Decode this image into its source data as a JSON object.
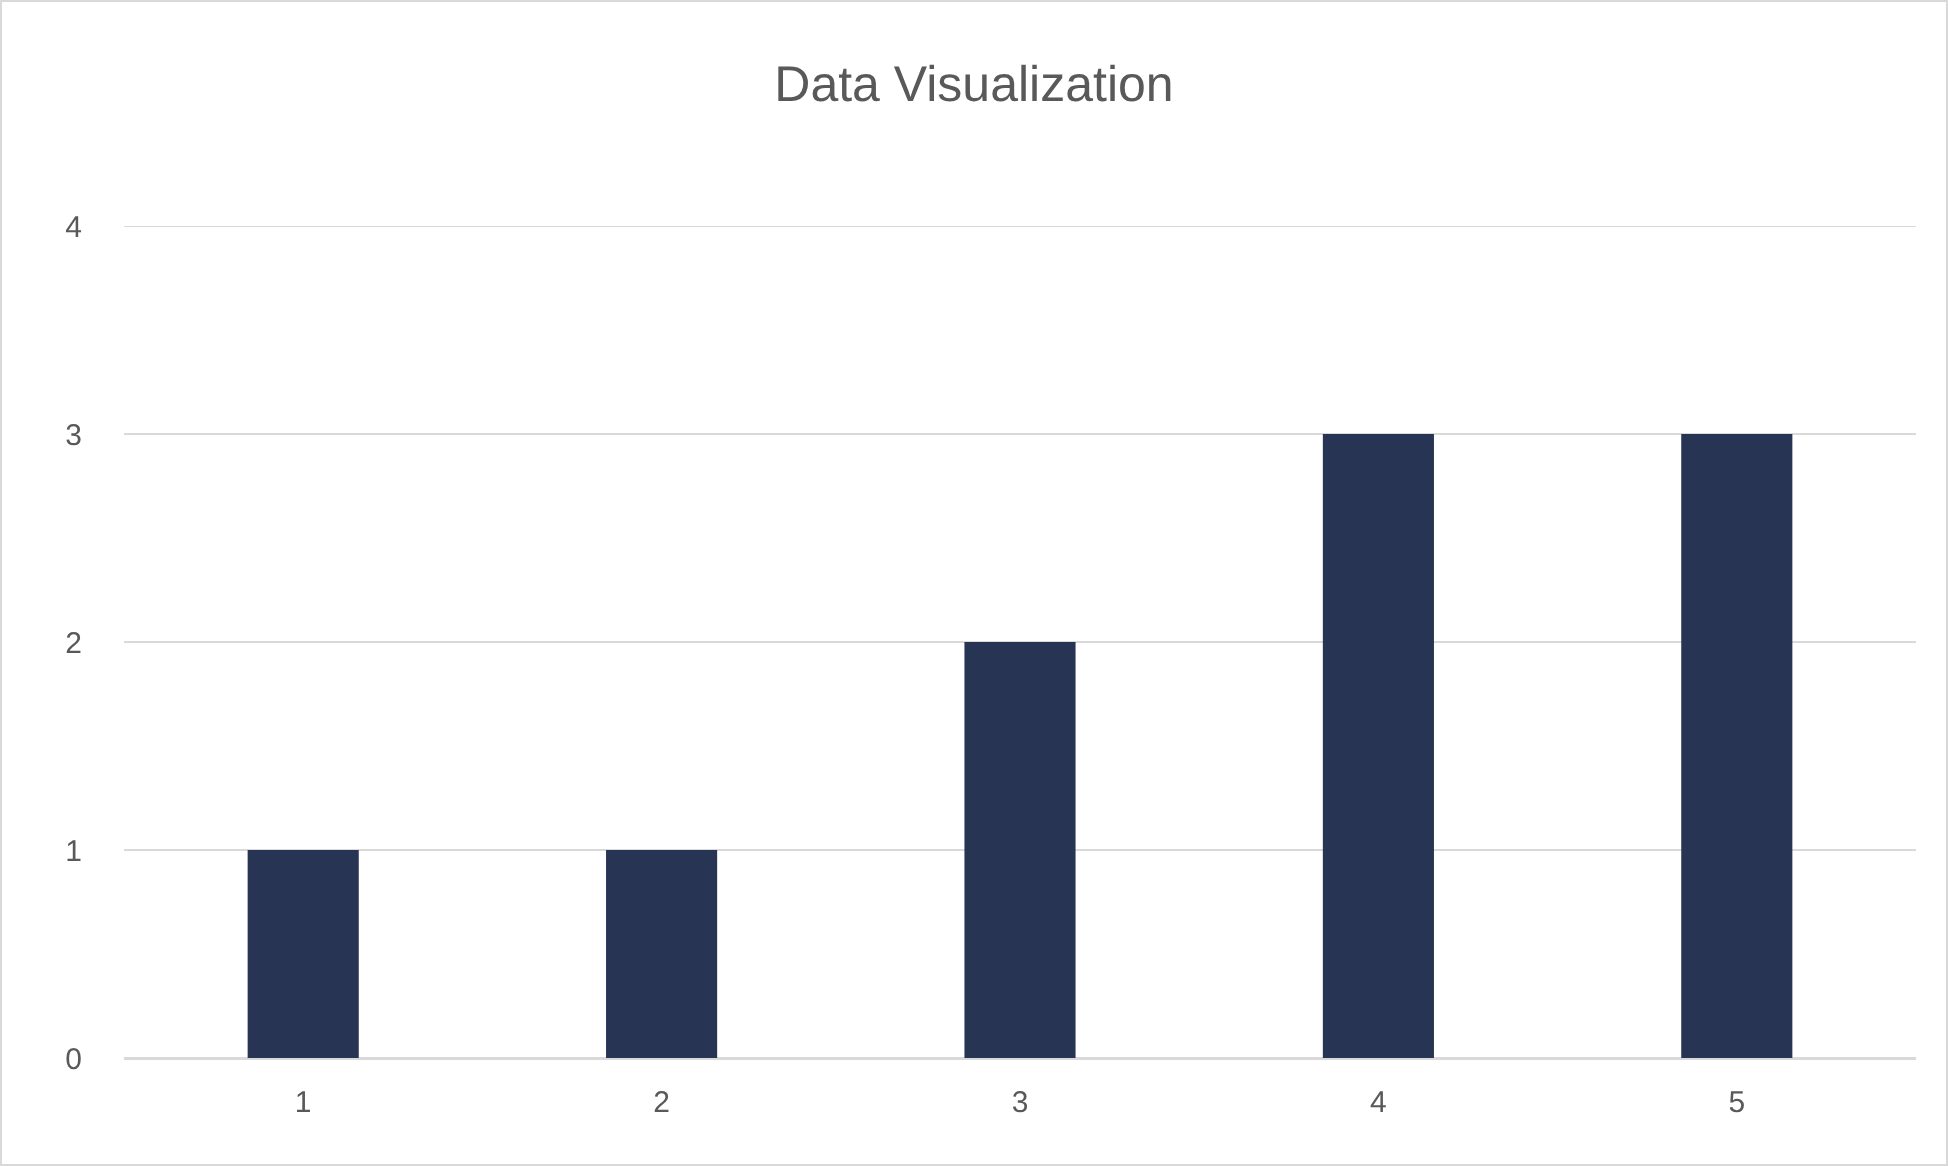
{
  "chart_data": {
    "type": "bar",
    "title": "Data Visualization",
    "categories": [
      "1",
      "2",
      "3",
      "4",
      "5"
    ],
    "values": [
      1,
      1,
      2,
      3,
      3
    ],
    "color": "#283454",
    "ylim": [
      0,
      4
    ],
    "yticks": [
      0,
      1,
      2,
      3,
      4
    ],
    "grid": "y"
  }
}
